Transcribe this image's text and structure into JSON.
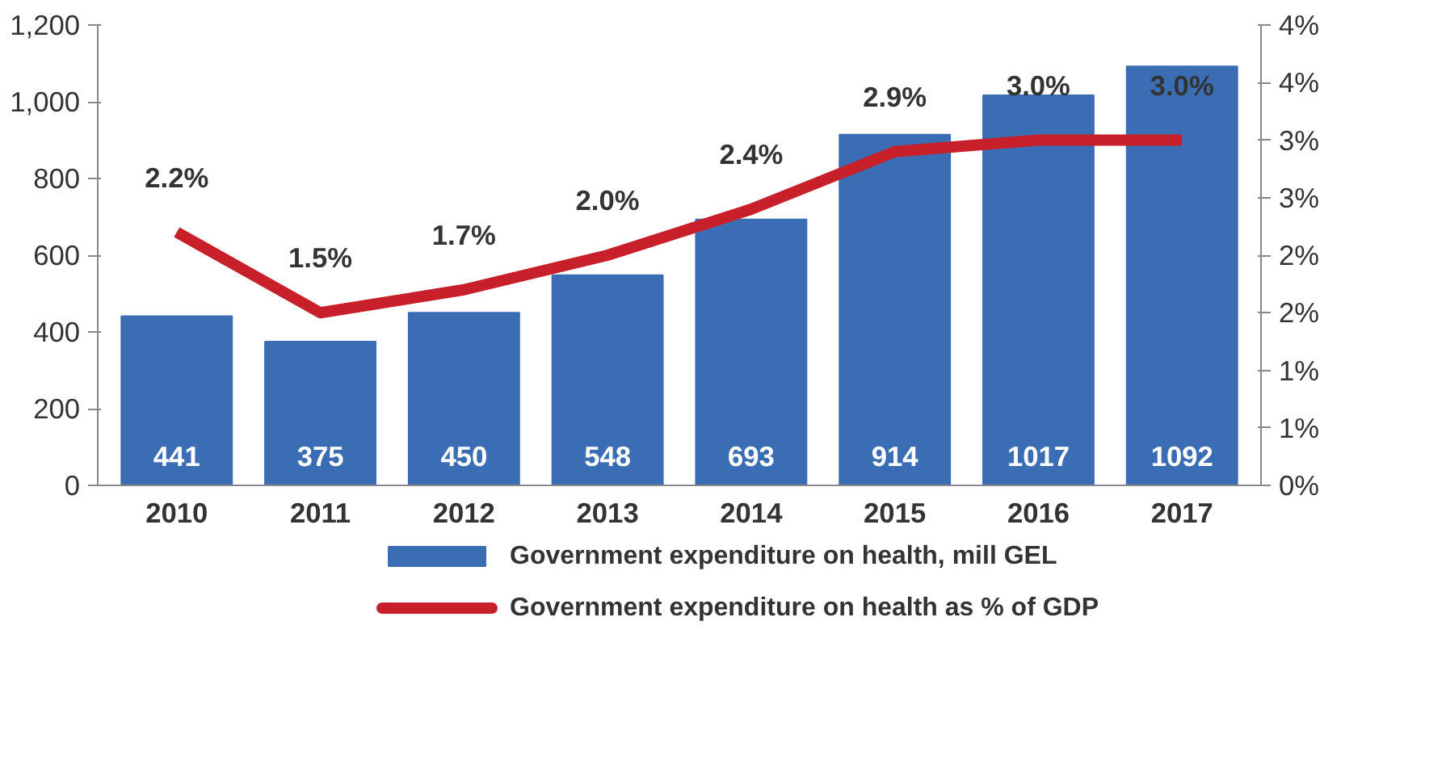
{
  "chart_data": {
    "type": "bar",
    "categories": [
      "2010",
      "2011",
      "2012",
      "2013",
      "2014",
      "2015",
      "2016",
      "2017"
    ],
    "series": [
      {
        "name": "Government expenditure on health, mill GEL",
        "color": "#3b6db5",
        "values": [
          441,
          375,
          450,
          548,
          693,
          914,
          1017,
          1092
        ]
      },
      {
        "name": "Government expenditure on health as % of GDP",
        "type": "line",
        "axis": "y2",
        "color": "#c8202a",
        "values": [
          2.2,
          1.5,
          1.7,
          2.0,
          2.4,
          2.9,
          3.0,
          3.0
        ],
        "value_labels": [
          "2.2%",
          "1.5%",
          "1.7%",
          "2.0%",
          "2.4%",
          "2.9%",
          "3.0%",
          "3.0%"
        ]
      }
    ],
    "ylim": [
      0,
      1200
    ],
    "yticks": [
      0,
      200,
      400,
      600,
      800,
      {
        "value": 1000,
        "label": "1,000"
      },
      {
        "value": 1200,
        "label": "1,200"
      }
    ],
    "y2lim": [
      0,
      4
    ],
    "y2ticks": [
      {
        "value": 0,
        "label": "0%"
      },
      {
        "value": 0.5,
        "label": "1%"
      },
      {
        "value": 1,
        "label": "1%"
      },
      {
        "value": 1.5,
        "label": "2%"
      },
      {
        "value": 2,
        "label": "2%"
      },
      {
        "value": 2.5,
        "label": "3%"
      },
      {
        "value": 3,
        "label": "3%"
      },
      {
        "value": 3.5,
        "label": "4%"
      },
      {
        "value": 4,
        "label": "4%"
      }
    ],
    "data_labels": true,
    "legend": "bottom",
    "grid": false,
    "marker": "none",
    "line_style": "solid"
  }
}
